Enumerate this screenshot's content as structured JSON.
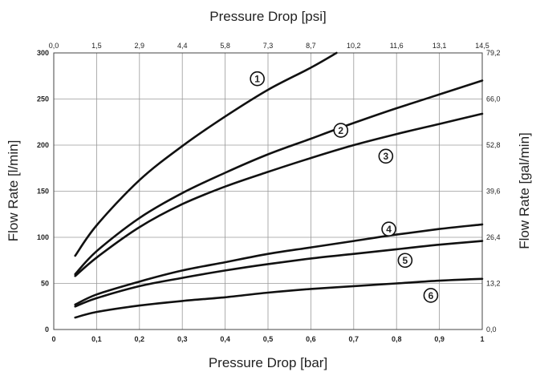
{
  "chart_data": {
    "type": "line",
    "xlabel": "Pressure Drop [bar]",
    "ylabel": "Flow Rate [l/min]",
    "x2label": "Pressure Drop [psi]",
    "y2label": "Flow Rate [gal/min]",
    "xlim": [
      0,
      1
    ],
    "ylim": [
      0,
      300
    ],
    "grid": true,
    "x_ticks": [
      {
        "value": 0,
        "label": "0"
      },
      {
        "value": 0.1,
        "label": "0,1"
      },
      {
        "value": 0.2,
        "label": "0,2"
      },
      {
        "value": 0.3,
        "label": "0,3"
      },
      {
        "value": 0.4,
        "label": "0,4"
      },
      {
        "value": 0.5,
        "label": "0,5"
      },
      {
        "value": 0.6,
        "label": "0,6"
      },
      {
        "value": 0.7,
        "label": "0,7"
      },
      {
        "value": 0.8,
        "label": "0,8"
      },
      {
        "value": 0.9,
        "label": "0,9"
      },
      {
        "value": 1,
        "label": "1"
      }
    ],
    "y_ticks": [
      {
        "value": 0,
        "label": "0"
      },
      {
        "value": 50,
        "label": "50"
      },
      {
        "value": 100,
        "label": "100"
      },
      {
        "value": 150,
        "label": "150"
      },
      {
        "value": 200,
        "label": "200"
      },
      {
        "value": 250,
        "label": "250"
      },
      {
        "value": 300,
        "label": "300"
      }
    ],
    "x2_ticks": [
      {
        "value": 0,
        "label": "0,0"
      },
      {
        "value": 0.1,
        "label": "1,5"
      },
      {
        "value": 0.2,
        "label": "2,9"
      },
      {
        "value": 0.3,
        "label": "4,4"
      },
      {
        "value": 0.4,
        "label": "5,8"
      },
      {
        "value": 0.5,
        "label": "7,3"
      },
      {
        "value": 0.6,
        "label": "8,7"
      },
      {
        "value": 0.7,
        "label": "10,2"
      },
      {
        "value": 0.8,
        "label": "11,6"
      },
      {
        "value": 0.9,
        "label": "13,1"
      },
      {
        "value": 1,
        "label": "14,5"
      }
    ],
    "y2_ticks": [
      {
        "value": 0,
        "label": "0,0"
      },
      {
        "value": 50,
        "label": "13,2"
      },
      {
        "value": 100,
        "label": "26,4"
      },
      {
        "value": 150,
        "label": "39,6"
      },
      {
        "value": 200,
        "label": "52,8"
      },
      {
        "value": 250,
        "label": "66,0"
      },
      {
        "value": 300,
        "label": "79,2"
      }
    ],
    "series": [
      {
        "marker": "1",
        "label_at": [
          0.475,
          272
        ],
        "x": [
          0.05,
          0.1,
          0.2,
          0.3,
          0.4,
          0.5,
          0.6,
          0.66
        ],
        "y": [
          80,
          113,
          162,
          199,
          231,
          260,
          284,
          300
        ]
      },
      {
        "marker": "2",
        "label_at": [
          0.67,
          216
        ],
        "x": [
          0.05,
          0.1,
          0.2,
          0.3,
          0.4,
          0.5,
          0.6,
          0.7,
          0.8,
          0.9,
          1.0
        ],
        "y": [
          60,
          85,
          121,
          148,
          170,
          190,
          207,
          224,
          240,
          255,
          270
        ]
      },
      {
        "marker": "3",
        "label_at": [
          0.775,
          188
        ],
        "x": [
          0.05,
          0.1,
          0.2,
          0.3,
          0.4,
          0.5,
          0.6,
          0.7,
          0.8,
          0.9,
          1.0
        ],
        "y": [
          58,
          78,
          111,
          136,
          155,
          171,
          186,
          200,
          212,
          223,
          234
        ]
      },
      {
        "marker": "4",
        "label_at": [
          0.782,
          109
        ],
        "x": [
          0.05,
          0.1,
          0.2,
          0.3,
          0.4,
          0.5,
          0.6,
          0.7,
          0.8,
          0.9,
          1.0
        ],
        "y": [
          27,
          38,
          52,
          64,
          73,
          82,
          89,
          96,
          103,
          109,
          114
        ]
      },
      {
        "marker": "5",
        "label_at": [
          0.82,
          75
        ],
        "x": [
          0.05,
          0.1,
          0.2,
          0.3,
          0.4,
          0.5,
          0.6,
          0.7,
          0.8,
          0.9,
          1.0
        ],
        "y": [
          25,
          34,
          47,
          56,
          64,
          71,
          77,
          82,
          87,
          92,
          96
        ]
      },
      {
        "marker": "6",
        "label_at": [
          0.88,
          37
        ],
        "x": [
          0.05,
          0.1,
          0.2,
          0.3,
          0.4,
          0.5,
          0.6,
          0.7,
          0.8,
          0.9,
          1.0
        ],
        "y": [
          13,
          19,
          26,
          31,
          35,
          40,
          44,
          47,
          50,
          53,
          55
        ]
      }
    ]
  }
}
